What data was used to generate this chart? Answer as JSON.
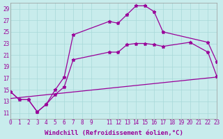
{
  "xlabel": "Windchill (Refroidissement éolien,°C)",
  "background_color": "#c8ecec",
  "line_color": "#990099",
  "grid_color": "#a8d8d8",
  "xlim": [
    0,
    23
  ],
  "ylim": [
    10,
    30
  ],
  "yticks": [
    11,
    13,
    15,
    17,
    19,
    21,
    23,
    25,
    27,
    29
  ],
  "curve1_x": [
    0,
    1,
    2,
    3,
    4,
    5,
    6,
    7,
    11,
    12,
    13,
    14,
    15,
    16,
    17,
    22,
    23
  ],
  "curve1_y": [
    14.7,
    13.3,
    13.3,
    11.2,
    12.5,
    15.0,
    17.2,
    24.5,
    26.8,
    26.5,
    28.0,
    29.5,
    29.5,
    28.5,
    25.0,
    23.2,
    19.8
  ],
  "curve2_x": [
    0,
    1,
    2,
    3,
    4,
    5,
    6,
    7,
    11,
    12,
    13,
    14,
    15,
    16,
    17,
    20,
    22,
    23
  ],
  "curve2_y": [
    14.7,
    13.3,
    13.3,
    11.2,
    12.5,
    14.2,
    15.5,
    20.2,
    21.5,
    21.5,
    22.8,
    23.0,
    23.0,
    22.8,
    22.5,
    23.2,
    21.5,
    17.3
  ],
  "curve3_x": [
    0,
    23
  ],
  "curve3_y": [
    13.5,
    17.2
  ],
  "tick_font_size": 5.5,
  "label_font_size": 6.5
}
